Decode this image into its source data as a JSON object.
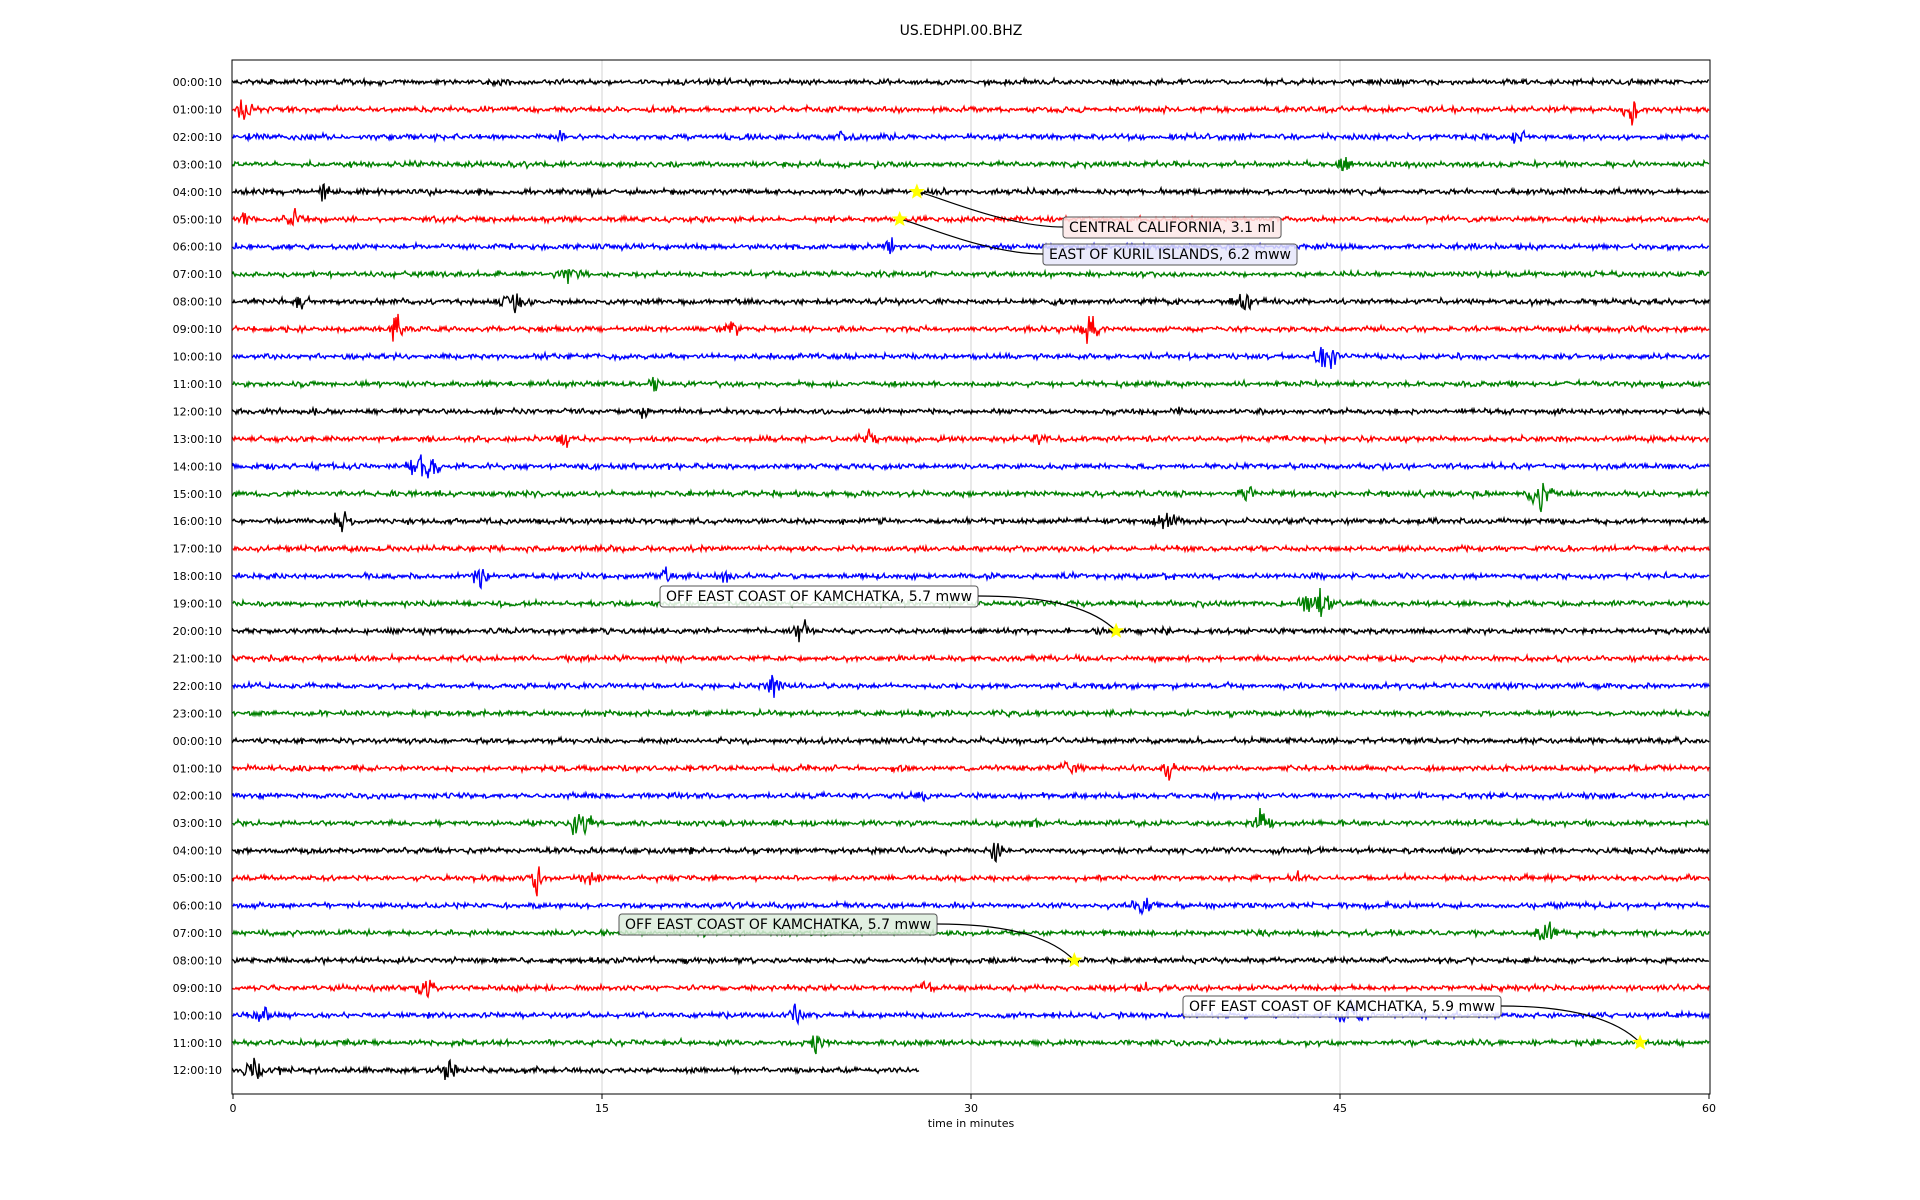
{
  "chart_data": {
    "type": "line",
    "title": "US.EDHPI.00.BHZ",
    "xlabel": "time in minutes",
    "ylabel": "",
    "xlim": [
      0,
      60
    ],
    "xticks": [
      0,
      15,
      30,
      45,
      60
    ],
    "grid": "vertical",
    "trace_colors": [
      "#000000",
      "#ff0000",
      "#0000ff",
      "#008000"
    ],
    "hour_labels": [
      "00:00:10",
      "01:00:10",
      "02:00:10",
      "03:00:10",
      "04:00:10",
      "05:00:10",
      "06:00:10",
      "07:00:10",
      "08:00:10",
      "09:00:10",
      "10:00:10",
      "11:00:10",
      "12:00:10",
      "13:00:10",
      "14:00:10",
      "15:00:10",
      "16:00:10",
      "17:00:10",
      "18:00:10",
      "19:00:10",
      "20:00:10",
      "21:00:10",
      "22:00:10",
      "23:00:10",
      "00:00:10",
      "01:00:10",
      "02:00:10",
      "03:00:10",
      "04:00:10",
      "05:00:10",
      "06:00:10",
      "07:00:10",
      "08:00:10",
      "09:00:10",
      "10:00:10",
      "11:00:10",
      "12:00:10"
    ],
    "last_trace_end_minute": 27.9,
    "annotations": [
      {
        "text": "CENTRAL CALIFORNIA, 3.1 ml",
        "row": 4,
        "minute": 27.8,
        "box_bg": "#fde8e8"
      },
      {
        "text": "EAST OF KURIL ISLANDS, 6.2 mww",
        "row": 5,
        "minute": 27.1,
        "box_bg": "#e6e6fa"
      },
      {
        "text": "OFF EAST COAST OF KAMCHATKA, 5.7 mww",
        "row": 20,
        "minute": 35.9,
        "box_bg": "#ffffff"
      },
      {
        "text": "OFF EAST COAST OF KAMCHATKA, 5.7 mww",
        "row": 32,
        "minute": 34.2,
        "box_bg": "#dcecdc"
      },
      {
        "text": "OFF EAST COAST OF KAMCHATKA, 5.9 mww",
        "row": 35,
        "minute": 57.2,
        "box_bg": "#ffffff"
      }
    ],
    "marker_color": "#ffff00"
  }
}
